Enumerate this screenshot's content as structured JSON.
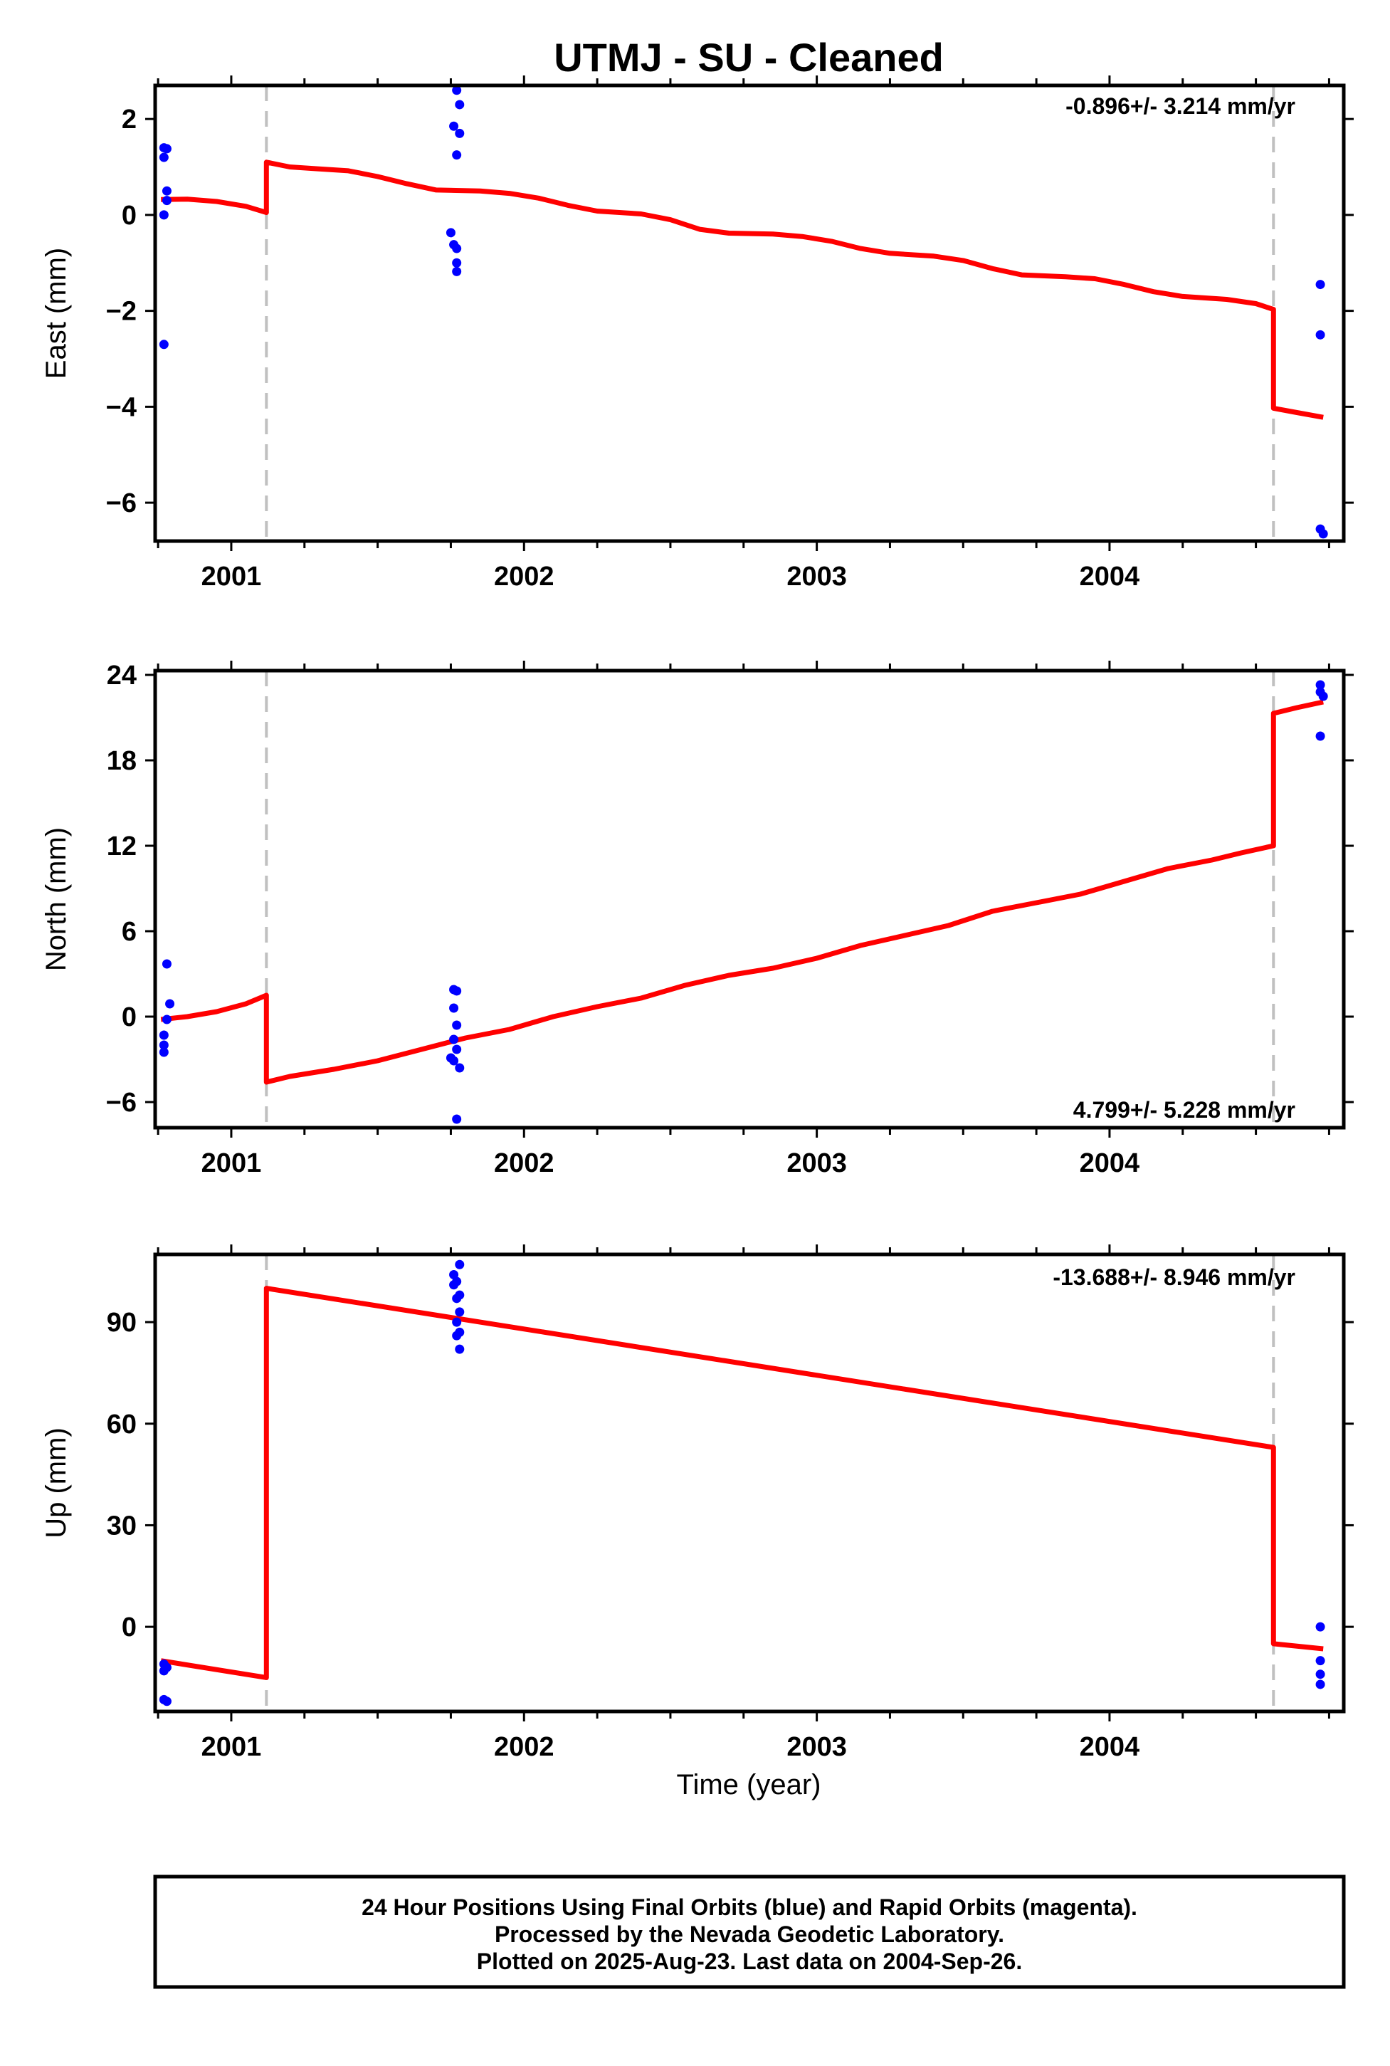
{
  "title": "UTMJ  - SU - Cleaned",
  "xlabel": "Time (year)",
  "footer": [
    "24 Hour Positions Using Final Orbits (blue) and Rapid Orbits (magenta).",
    "Processed by the Nevada Geodetic Laboratory.",
    "Plotted on 2025-Aug-23. Last data on 2004-Sep-26."
  ],
  "colors": {
    "data": "#0000ff",
    "model": "#ff0000",
    "break": "#c0c0c0",
    "axis": "#000000"
  },
  "chart_data": [
    {
      "type": "scatter",
      "panel": "east",
      "ylabel": "East (mm)",
      "rate": "-0.896+/- 3.214 mm/yr",
      "xlim": [
        2000.74,
        2004.8
      ],
      "ylim": [
        -6.8,
        2.7
      ],
      "yticks": [
        2,
        0,
        -2,
        -4,
        -6
      ],
      "ytick_labels": [
        "2",
        "0",
        "−2",
        "−4",
        "−6"
      ],
      "xticks": [
        2001,
        2002,
        2003,
        2004
      ],
      "xtick_labels": [
        "2001",
        "2002",
        "2003",
        "2004"
      ],
      "breaks": [
        2001.12,
        2004.56
      ],
      "points": [
        [
          2000.77,
          1.4
        ],
        [
          2000.78,
          1.38
        ],
        [
          2000.77,
          1.2
        ],
        [
          2000.78,
          0.5
        ],
        [
          2000.78,
          0.3
        ],
        [
          2000.77,
          0.0
        ],
        [
          2000.77,
          -2.7
        ],
        [
          2001.77,
          2.6
        ],
        [
          2001.78,
          2.3
        ],
        [
          2001.76,
          1.85
        ],
        [
          2001.78,
          1.7
        ],
        [
          2001.77,
          1.25
        ],
        [
          2001.75,
          -0.37
        ],
        [
          2001.76,
          -0.62
        ],
        [
          2001.77,
          -0.7
        ],
        [
          2001.77,
          -1.0
        ],
        [
          2001.77,
          -1.18
        ],
        [
          2004.72,
          -1.45
        ],
        [
          2004.72,
          -2.5
        ],
        [
          2004.72,
          -6.55
        ],
        [
          2004.73,
          -6.65
        ]
      ],
      "model": [
        [
          2000.76,
          0.32
        ],
        [
          2000.85,
          0.33
        ],
        [
          2000.95,
          0.28
        ],
        [
          2001.05,
          0.18
        ],
        [
          2001.12,
          0.05
        ],
        [
          2001.12,
          1.1
        ],
        [
          2001.2,
          1.0
        ],
        [
          2001.3,
          0.96
        ],
        [
          2001.4,
          0.92
        ],
        [
          2001.5,
          0.8
        ],
        [
          2001.6,
          0.65
        ],
        [
          2001.7,
          0.52
        ],
        [
          2001.85,
          0.5
        ],
        [
          2001.95,
          0.45
        ],
        [
          2002.05,
          0.35
        ],
        [
          2002.15,
          0.2
        ],
        [
          2002.25,
          0.08
        ],
        [
          2002.4,
          0.02
        ],
        [
          2002.5,
          -0.1
        ],
        [
          2002.6,
          -0.3
        ],
        [
          2002.7,
          -0.38
        ],
        [
          2002.85,
          -0.4
        ],
        [
          2002.95,
          -0.45
        ],
        [
          2003.05,
          -0.55
        ],
        [
          2003.15,
          -0.7
        ],
        [
          2003.25,
          -0.8
        ],
        [
          2003.4,
          -0.86
        ],
        [
          2003.5,
          -0.95
        ],
        [
          2003.6,
          -1.12
        ],
        [
          2003.7,
          -1.25
        ],
        [
          2003.85,
          -1.29
        ],
        [
          2003.95,
          -1.33
        ],
        [
          2004.05,
          -1.45
        ],
        [
          2004.15,
          -1.6
        ],
        [
          2004.25,
          -1.7
        ],
        [
          2004.4,
          -1.76
        ],
        [
          2004.5,
          -1.85
        ],
        [
          2004.56,
          -1.97
        ],
        [
          2004.56,
          -4.03
        ],
        [
          2004.64,
          -4.12
        ],
        [
          2004.73,
          -4.22
        ]
      ]
    },
    {
      "type": "scatter",
      "panel": "north",
      "ylabel": "North (mm)",
      "rate": "4.799+/- 5.228 mm/yr",
      "xlim": [
        2000.74,
        2004.8
      ],
      "ylim": [
        -7.8,
        24.3
      ],
      "yticks": [
        24,
        18,
        12,
        6,
        0,
        -6
      ],
      "ytick_labels": [
        "24",
        "18",
        "12",
        "6",
        "0",
        "−6"
      ],
      "xticks": [
        2001,
        2002,
        2003,
        2004
      ],
      "xtick_labels": [
        "2001",
        "2002",
        "2003",
        "2004"
      ],
      "breaks": [
        2001.12,
        2004.56
      ],
      "points": [
        [
          2000.78,
          3.7
        ],
        [
          2000.79,
          0.9
        ],
        [
          2000.78,
          -0.2
        ],
        [
          2000.77,
          -1.3
        ],
        [
          2000.77,
          -2.0
        ],
        [
          2000.77,
          -2.5
        ],
        [
          2001.76,
          1.9
        ],
        [
          2001.77,
          1.8
        ],
        [
          2001.76,
          0.6
        ],
        [
          2001.77,
          -0.6
        ],
        [
          2001.76,
          -1.6
        ],
        [
          2001.77,
          -2.3
        ],
        [
          2001.75,
          -2.9
        ],
        [
          2001.76,
          -3.1
        ],
        [
          2001.78,
          -3.6
        ],
        [
          2001.77,
          -7.2
        ],
        [
          2004.72,
          23.3
        ],
        [
          2004.72,
          22.8
        ],
        [
          2004.73,
          22.5
        ],
        [
          2004.72,
          19.7
        ]
      ],
      "model": [
        [
          2000.76,
          -0.2
        ],
        [
          2000.85,
          0.0
        ],
        [
          2000.95,
          0.35
        ],
        [
          2001.05,
          0.9
        ],
        [
          2001.12,
          1.5
        ],
        [
          2001.12,
          -4.6
        ],
        [
          2001.2,
          -4.2
        ],
        [
          2001.35,
          -3.7
        ],
        [
          2001.5,
          -3.1
        ],
        [
          2001.65,
          -2.3
        ],
        [
          2001.8,
          -1.5
        ],
        [
          2001.95,
          -0.9
        ],
        [
          2002.1,
          0.0
        ],
        [
          2002.25,
          0.7
        ],
        [
          2002.4,
          1.3
        ],
        [
          2002.55,
          2.2
        ],
        [
          2002.7,
          2.9
        ],
        [
          2002.85,
          3.4
        ],
        [
          2003.0,
          4.1
        ],
        [
          2003.15,
          5.0
        ],
        [
          2003.3,
          5.7
        ],
        [
          2003.45,
          6.4
        ],
        [
          2003.6,
          7.4
        ],
        [
          2003.75,
          8.0
        ],
        [
          2003.9,
          8.6
        ],
        [
          2004.05,
          9.5
        ],
        [
          2004.2,
          10.4
        ],
        [
          2004.35,
          11.0
        ],
        [
          2004.45,
          11.5
        ],
        [
          2004.56,
          12.0
        ],
        [
          2004.56,
          21.3
        ],
        [
          2004.64,
          21.7
        ],
        [
          2004.73,
          22.1
        ]
      ]
    },
    {
      "type": "scatter",
      "panel": "up",
      "ylabel": "Up (mm)",
      "rate": "-13.688+/- 8.946 mm/yr",
      "xlim": [
        2000.74,
        2004.8
      ],
      "ylim": [
        -25,
        110
      ],
      "yticks": [
        90,
        60,
        30,
        0
      ],
      "ytick_labels": [
        "90",
        "60",
        "30",
        "0"
      ],
      "xticks": [
        2001,
        2002,
        2003,
        2004
      ],
      "xtick_labels": [
        "2001",
        "2002",
        "2003",
        "2004"
      ],
      "breaks": [
        2001.12,
        2004.56
      ],
      "points": [
        [
          2000.77,
          -11
        ],
        [
          2000.78,
          -12
        ],
        [
          2000.77,
          -13
        ],
        [
          2000.77,
          -21.5
        ],
        [
          2000.78,
          -22
        ],
        [
          2001.78,
          107
        ],
        [
          2001.76,
          104
        ],
        [
          2001.77,
          102
        ],
        [
          2001.76,
          101
        ],
        [
          2001.78,
          98
        ],
        [
          2001.77,
          97
        ],
        [
          2001.78,
          93
        ],
        [
          2001.77,
          90
        ],
        [
          2001.78,
          87
        ],
        [
          2001.77,
          86
        ],
        [
          2001.78,
          82
        ],
        [
          2004.72,
          0
        ],
        [
          2004.72,
          -10
        ],
        [
          2004.72,
          -14
        ],
        [
          2004.72,
          -17
        ]
      ],
      "model": [
        [
          2000.76,
          -10
        ],
        [
          2001.12,
          -15
        ],
        [
          2001.12,
          100
        ],
        [
          2004.56,
          53
        ],
        [
          2004.56,
          -5
        ],
        [
          2004.73,
          -6.5
        ]
      ]
    }
  ]
}
